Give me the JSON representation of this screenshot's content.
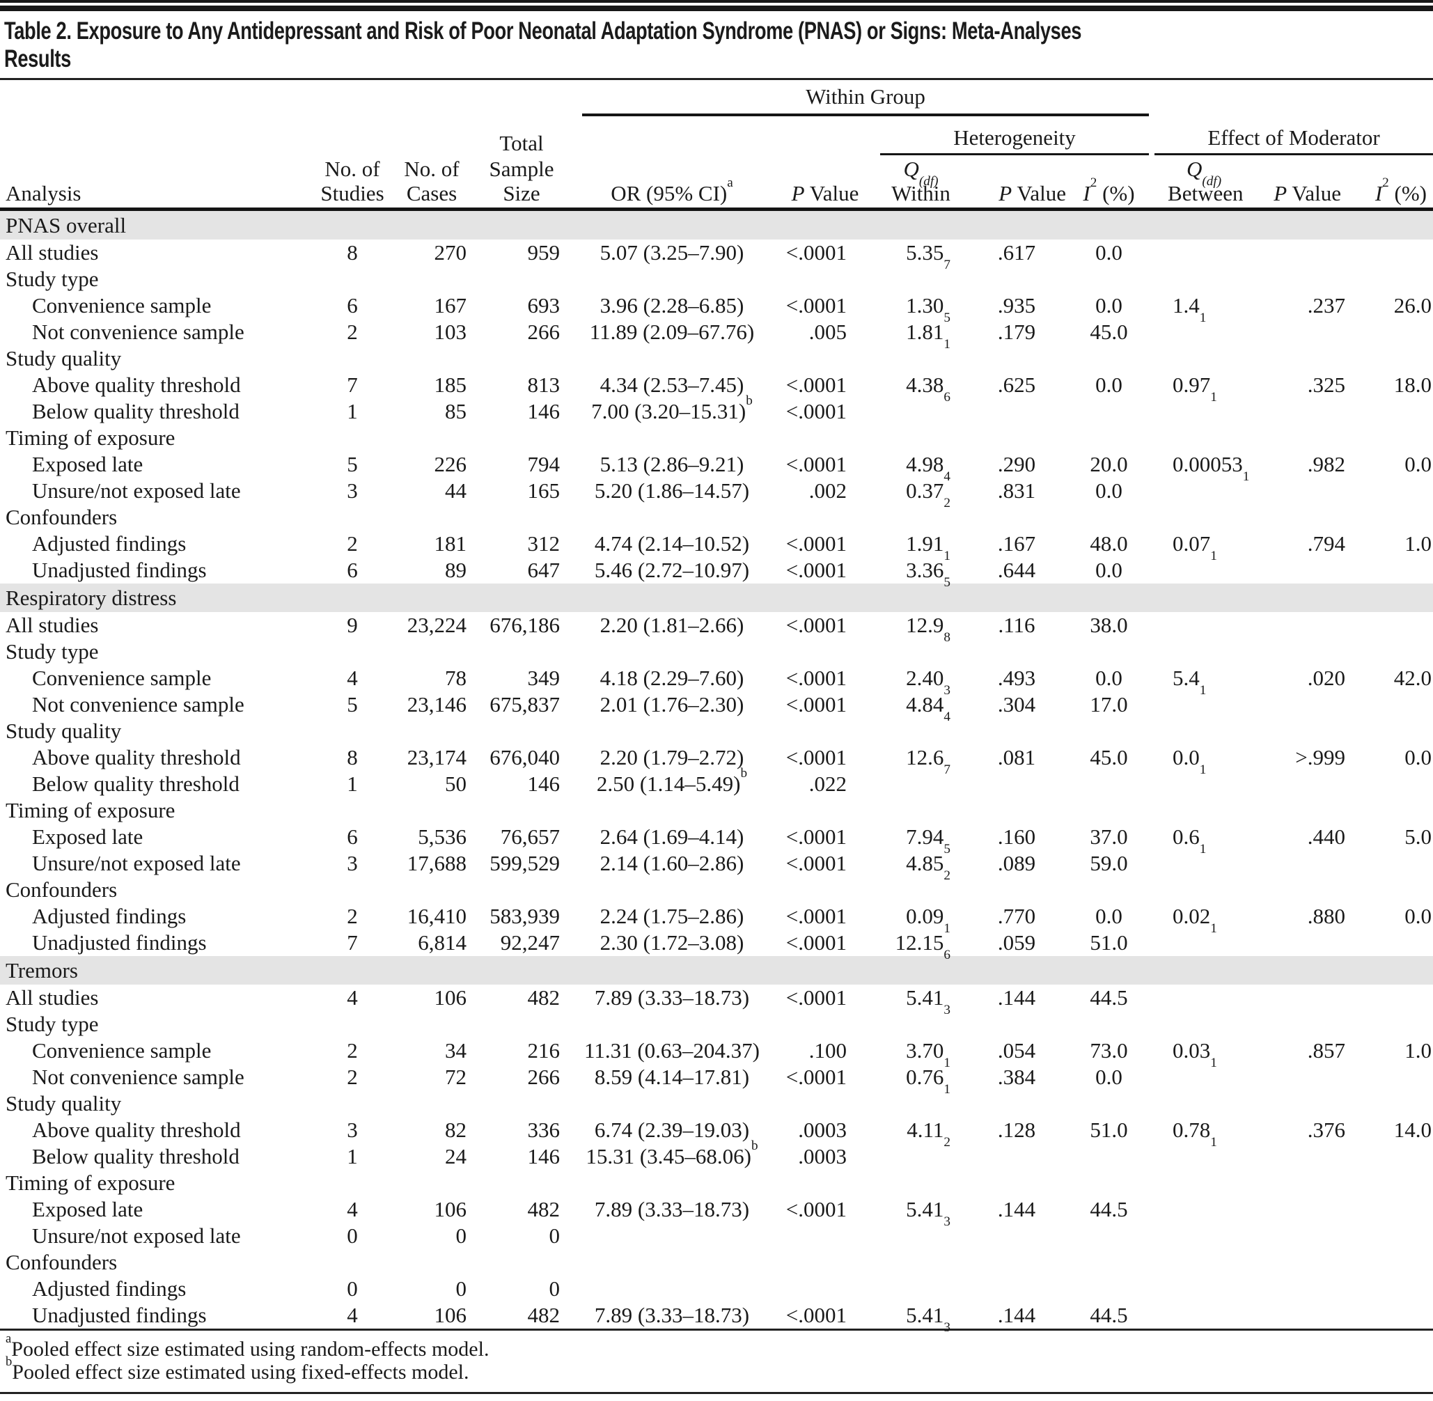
{
  "title_line1": "Table 2. Exposure to Any Antidepressant and Risk of Poor Neonatal Adaptation Syndrome (PNAS) or Signs: Meta-Analyses",
  "title_line2": "Results",
  "header": {
    "group_within": "Within Group",
    "group_heterogeneity": "Heterogeneity",
    "group_moderator": "Effect of Moderator",
    "col_analysis": "Analysis",
    "no_of": "No. of",
    "col_studies": "Studies",
    "col_cases": "Cases",
    "col_total": "Total",
    "col_sample": "Sample",
    "col_size": "Size",
    "col_or": "OR (95% CI)",
    "col_or_sup": "a",
    "p_italic": "P",
    "p_rest": " Value",
    "q_italic": "Q",
    "q_sub": "(df)",
    "q_within": "Within",
    "q_between": "Between",
    "i_italic": "I",
    "i_sup": "2",
    "i_rest": " (%)"
  },
  "colors": {
    "band_gray": "#e4e4e4",
    "rule_black": "#161616"
  },
  "sections": [
    {
      "label": "PNAS overall",
      "rows": [
        {
          "label": "All studies",
          "studies": "8",
          "cases": "270",
          "sample": "959",
          "or": "5.07 (3.25–7.90)",
          "p": "<.0001",
          "qw": "5.35",
          "qw_df": "7",
          "pw": ".617",
          "i2w": "0.0"
        },
        {
          "label": "Study type",
          "sub": true
        },
        {
          "label": "Convenience sample",
          "ind": true,
          "studies": "6",
          "cases": "167",
          "sample": "693",
          "or": "3.96 (2.28–6.85)",
          "p": "<.0001",
          "qw": "1.30",
          "qw_df": "5",
          "pw": ".935",
          "i2w": "0.0",
          "qb": "1.4",
          "qb_df": "1",
          "pb": ".237",
          "i2b": "26.0"
        },
        {
          "label": "Not convenience sample",
          "ind": true,
          "studies": "2",
          "cases": "103",
          "sample": "266",
          "or": "11.89 (2.09–67.76)",
          "p": ".005",
          "qw": "1.81",
          "qw_df": "1",
          "pw": ".179",
          "i2w": "45.0"
        },
        {
          "label": "Study quality",
          "sub": true
        },
        {
          "label": "Above quality threshold",
          "ind": true,
          "studies": "7",
          "cases": "185",
          "sample": "813",
          "or": "4.34 (2.53–7.45)",
          "p": "<.0001",
          "qw": "4.38",
          "qw_df": "6",
          "pw": ".625",
          "i2w": "0.0",
          "qb": "0.97",
          "qb_df": "1",
          "pb": ".325",
          "i2b": "18.0"
        },
        {
          "label": "Below quality threshold",
          "ind": true,
          "studies": "1",
          "cases": "85",
          "sample": "146",
          "or": "7.00 (3.20–15.31)",
          "or_sup": "b",
          "p": "<.0001"
        },
        {
          "label": "Timing of exposure",
          "sub": true
        },
        {
          "label": "Exposed late",
          "ind": true,
          "studies": "5",
          "cases": "226",
          "sample": "794",
          "or": "5.13 (2.86–9.21)",
          "p": "<.0001",
          "qw": "4.98",
          "qw_df": "4",
          "pw": ".290",
          "i2w": "20.0",
          "qb": "0.00053",
          "qb_df": "1",
          "pb": ".982",
          "i2b": "0.0"
        },
        {
          "label": "Unsure/not exposed late",
          "ind": true,
          "studies": "3",
          "cases": "44",
          "sample": "165",
          "or": "5.20 (1.86–14.57)",
          "p": ".002",
          "qw": "0.37",
          "qw_df": "2",
          "pw": ".831",
          "i2w": "0.0"
        },
        {
          "label": "Confounders",
          "sub": true
        },
        {
          "label": "Adjusted findings",
          "ind": true,
          "studies": "2",
          "cases": "181",
          "sample": "312",
          "or": "4.74 (2.14–10.52)",
          "p": "<.0001",
          "qw": "1.91",
          "qw_df": "1",
          "pw": ".167",
          "i2w": "48.0",
          "qb": "0.07",
          "qb_df": "1",
          "pb": ".794",
          "i2b": "1.0"
        },
        {
          "label": "Unadjusted findings",
          "ind": true,
          "studies": "6",
          "cases": "89",
          "sample": "647",
          "or": "5.46 (2.72–10.97)",
          "p": "<.0001",
          "qw": "3.36",
          "qw_df": "5",
          "pw": ".644",
          "i2w": "0.0"
        }
      ]
    },
    {
      "label": "Respiratory distress",
      "rows": [
        {
          "label": "All studies",
          "studies": "9",
          "cases": "23,224",
          "sample": "676,186",
          "or": "2.20 (1.81–2.66)",
          "p": "<.0001",
          "qw": "12.9",
          "qw_df": "8",
          "pw": ".116",
          "i2w": "38.0"
        },
        {
          "label": "Study type",
          "sub": true
        },
        {
          "label": "Convenience sample",
          "ind": true,
          "studies": "4",
          "cases": "78",
          "sample": "349",
          "or": "4.18 (2.29–7.60)",
          "p": "<.0001",
          "qw": "2.40",
          "qw_df": "3",
          "pw": ".493",
          "i2w": "0.0",
          "qb": "5.4",
          "qb_df": "1",
          "pb": ".020",
          "i2b": "42.0"
        },
        {
          "label": "Not convenience sample",
          "ind": true,
          "studies": "5",
          "cases": "23,146",
          "sample": "675,837",
          "or": "2.01 (1.76–2.30)",
          "p": "<.0001",
          "qw": "4.84",
          "qw_df": "4",
          "pw": ".304",
          "i2w": "17.0"
        },
        {
          "label": "Study quality",
          "sub": true
        },
        {
          "label": "Above quality threshold",
          "ind": true,
          "studies": "8",
          "cases": "23,174",
          "sample": "676,040",
          "or": "2.20 (1.79–2.72)",
          "p": "<.0001",
          "qw": "12.6",
          "qw_df": "7",
          "pw": ".081",
          "i2w": "45.0",
          "qb": "0.0",
          "qb_df": "1",
          "pb": ">.999",
          "i2b": "0.0"
        },
        {
          "label": "Below quality threshold",
          "ind": true,
          "studies": "1",
          "cases": "50",
          "sample": "146",
          "or": "2.50 (1.14–5.49)",
          "or_sup": "b",
          "p": ".022"
        },
        {
          "label": "Timing of exposure",
          "sub": true
        },
        {
          "label": "Exposed late",
          "ind": true,
          "studies": "6",
          "cases": "5,536",
          "sample": "76,657",
          "or": "2.64 (1.69–4.14)",
          "p": "<.0001",
          "qw": "7.94",
          "qw_df": "5",
          "pw": ".160",
          "i2w": "37.0",
          "qb": "0.6",
          "qb_df": "1",
          "pb": ".440",
          "i2b": "5.0"
        },
        {
          "label": "Unsure/not exposed late",
          "ind": true,
          "studies": "3",
          "cases": "17,688",
          "sample": "599,529",
          "or": "2.14 (1.60–2.86)",
          "p": "<.0001",
          "qw": "4.85",
          "qw_df": "2",
          "pw": ".089",
          "i2w": "59.0"
        },
        {
          "label": "Confounders",
          "sub": true
        },
        {
          "label": "Adjusted findings",
          "ind": true,
          "studies": "2",
          "cases": "16,410",
          "sample": "583,939",
          "or": "2.24 (1.75–2.86)",
          "p": "<.0001",
          "qw": "0.09",
          "qw_df": "1",
          "pw": ".770",
          "i2w": "0.0",
          "qb": "0.02",
          "qb_df": "1",
          "pb": ".880",
          "i2b": "0.0"
        },
        {
          "label": "Unadjusted findings",
          "ind": true,
          "studies": "7",
          "cases": "6,814",
          "sample": "92,247",
          "or": "2.30 (1.72–3.08)",
          "p": "<.0001",
          "qw": "12.15",
          "qw_df": "6",
          "pw": ".059",
          "i2w": "51.0"
        }
      ]
    },
    {
      "label": "Tremors",
      "rows": [
        {
          "label": "All studies",
          "studies": "4",
          "cases": "106",
          "sample": "482",
          "or": "7.89 (3.33–18.73)",
          "p": "<.0001",
          "qw": "5.41",
          "qw_df": "3",
          "pw": ".144",
          "i2w": "44.5"
        },
        {
          "label": "Study type",
          "sub": true
        },
        {
          "label": "Convenience sample",
          "ind": true,
          "studies": "2",
          "cases": "34",
          "sample": "216",
          "or": "11.31 (0.63–204.37)",
          "p": ".100",
          "qw": "3.70",
          "qw_df": "1",
          "pw": ".054",
          "i2w": "73.0",
          "qb": "0.03",
          "qb_df": "1",
          "pb": ".857",
          "i2b": "1.0"
        },
        {
          "label": "Not convenience sample",
          "ind": true,
          "studies": "2",
          "cases": "72",
          "sample": "266",
          "or": "8.59 (4.14–17.81)",
          "p": "<.0001",
          "qw": "0.76",
          "qw_df": "1",
          "pw": ".384",
          "i2w": "0.0"
        },
        {
          "label": "Study quality",
          "sub": true
        },
        {
          "label": "Above quality threshold",
          "ind": true,
          "studies": "3",
          "cases": "82",
          "sample": "336",
          "or": "6.74 (2.39–19.03)",
          "p": ".0003",
          "qw": "4.11",
          "qw_df": "2",
          "pw": ".128",
          "i2w": "51.0",
          "qb": "0.78",
          "qb_df": "1",
          "pb": ".376",
          "i2b": "14.0"
        },
        {
          "label": "Below quality threshold",
          "ind": true,
          "studies": "1",
          "cases": "24",
          "sample": "146",
          "or": "15.31 (3.45–68.06)",
          "or_sup": "b",
          "p": ".0003"
        },
        {
          "label": "Timing of exposure",
          "sub": true
        },
        {
          "label": "Exposed late",
          "ind": true,
          "studies": "4",
          "cases": "106",
          "sample": "482",
          "or": "7.89 (3.33–18.73)",
          "p": "<.0001",
          "qw": "5.41",
          "qw_df": "3",
          "pw": ".144",
          "i2w": "44.5"
        },
        {
          "label": "Unsure/not exposed late",
          "ind": true,
          "studies": "0",
          "cases": "0",
          "sample": "0"
        },
        {
          "label": "Confounders",
          "sub": true
        },
        {
          "label": "Adjusted findings",
          "ind": true,
          "studies": "0",
          "cases": "0",
          "sample": "0"
        },
        {
          "label": "Unadjusted findings",
          "ind": true,
          "studies": "4",
          "cases": "106",
          "sample": "482",
          "or": "7.89 (3.33–18.73)",
          "p": "<.0001",
          "qw": "5.41",
          "qw_df": "3",
          "pw": ".144",
          "i2w": "44.5"
        }
      ]
    }
  ],
  "footnotes": [
    {
      "sup": "a",
      "text": "Pooled effect size estimated using random-effects model."
    },
    {
      "sup": "b",
      "text": "Pooled effect size estimated using fixed-effects model."
    }
  ]
}
